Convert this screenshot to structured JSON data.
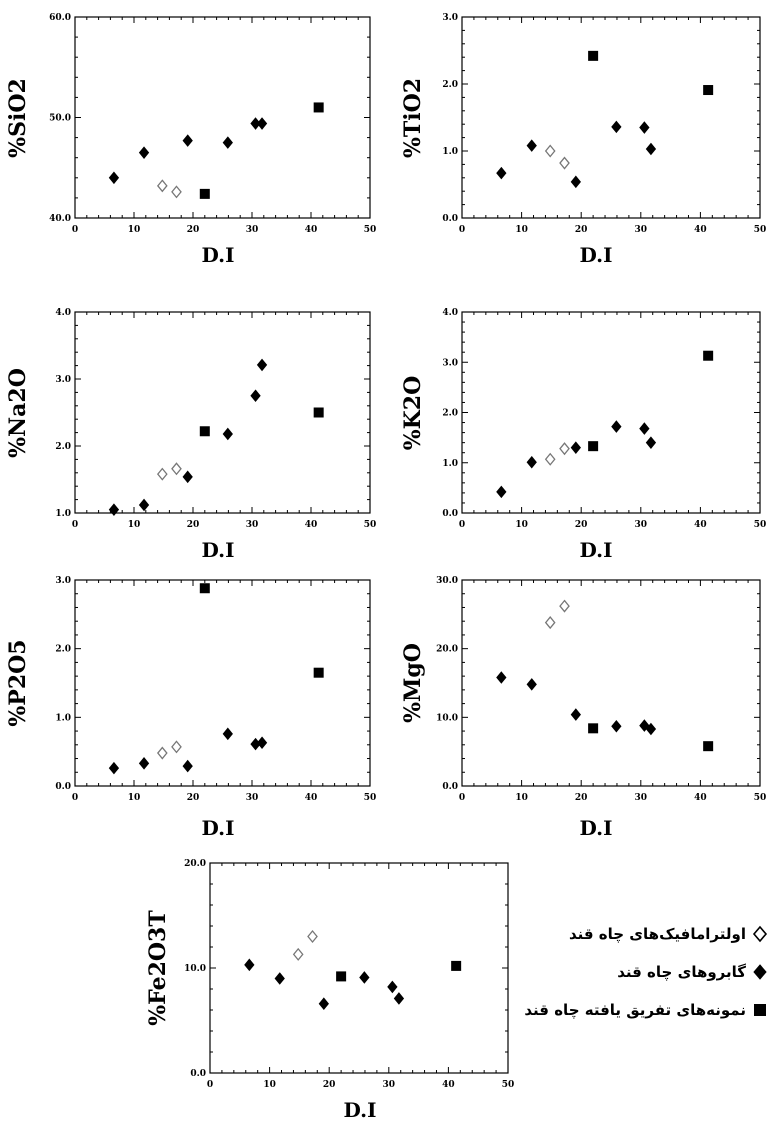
{
  "chart_data": [
    {
      "type": "scatter",
      "id": "sio2",
      "ylabel": "%SiO2",
      "xlabel": "D.I",
      "xlim": [
        0,
        50
      ],
      "ylim": [
        40,
        60
      ],
      "xticks": [
        0,
        10,
        20,
        30,
        40,
        50
      ],
      "xtick_labels": [
        "0",
        "10",
        "20",
        "30",
        "40",
        "50"
      ],
      "yticks": [
        40,
        50,
        60
      ],
      "ytick_labels": [
        "40.0",
        "50.0",
        "60.0"
      ],
      "series": [
        {
          "marker": "open-diamond",
          "x": [
            14.8,
            17.2
          ],
          "y": [
            43.2,
            42.6
          ]
        },
        {
          "marker": "filled-diamond",
          "x": [
            6.6,
            11.7,
            19.1,
            25.9,
            30.6,
            31.7
          ],
          "y": [
            44.0,
            46.5,
            47.7,
            47.5,
            49.4,
            49.4
          ]
        },
        {
          "marker": "filled-square",
          "x": [
            22.0,
            41.3
          ],
          "y": [
            42.4,
            51.0
          ]
        }
      ]
    },
    {
      "type": "scatter",
      "id": "tio2",
      "ylabel": "%TiO2",
      "xlabel": "D.I",
      "xlim": [
        0,
        50
      ],
      "ylim": [
        0,
        3
      ],
      "xticks": [
        0,
        10,
        20,
        30,
        40,
        50
      ],
      "xtick_labels": [
        "0",
        "10",
        "20",
        "30",
        "40",
        "50"
      ],
      "yticks": [
        0,
        1,
        2,
        3
      ],
      "ytick_labels": [
        "0.0",
        "1.0",
        "2.0",
        "3.0"
      ],
      "series": [
        {
          "marker": "open-diamond",
          "x": [
            14.8,
            17.2
          ],
          "y": [
            1.0,
            0.82
          ]
        },
        {
          "marker": "filled-diamond",
          "x": [
            6.6,
            11.7,
            19.1,
            25.9,
            30.6,
            31.7
          ],
          "y": [
            0.67,
            1.08,
            0.54,
            1.36,
            1.35,
            1.03
          ]
        },
        {
          "marker": "filled-square",
          "x": [
            22.0,
            41.3
          ],
          "y": [
            2.42,
            1.91
          ]
        }
      ]
    },
    {
      "type": "scatter",
      "id": "na2o",
      "ylabel": "%Na2O",
      "xlabel": "D.I",
      "xlim": [
        0,
        50
      ],
      "ylim": [
        1,
        4
      ],
      "xticks": [
        0,
        10,
        20,
        30,
        40,
        50
      ],
      "xtick_labels": [
        "0",
        "10",
        "20",
        "30",
        "40",
        "50"
      ],
      "yticks": [
        1,
        2,
        3,
        4
      ],
      "ytick_labels": [
        "1.0",
        "2.0",
        "3.0",
        "4.0"
      ],
      "series": [
        {
          "marker": "open-diamond",
          "x": [
            14.8,
            17.2
          ],
          "y": [
            1.58,
            1.66
          ]
        },
        {
          "marker": "filled-diamond",
          "x": [
            6.6,
            11.7,
            19.1,
            25.9,
            30.6,
            31.7
          ],
          "y": [
            1.05,
            1.12,
            1.54,
            2.18,
            2.75,
            3.21
          ]
        },
        {
          "marker": "filled-square",
          "x": [
            22.0,
            41.3
          ],
          "y": [
            2.22,
            2.5
          ]
        }
      ]
    },
    {
      "type": "scatter",
      "id": "k2o",
      "ylabel": "%K2O",
      "xlabel": "D.I",
      "xlim": [
        0,
        50
      ],
      "ylim": [
        0,
        4
      ],
      "xticks": [
        0,
        10,
        20,
        30,
        40,
        50
      ],
      "xtick_labels": [
        "0",
        "10",
        "20",
        "30",
        "40",
        "50"
      ],
      "yticks": [
        0,
        1,
        2,
        3,
        4
      ],
      "ytick_labels": [
        "0.0",
        "1.0",
        "2.0",
        "3.0",
        "4.0"
      ],
      "series": [
        {
          "marker": "open-diamond",
          "x": [
            14.8,
            17.2
          ],
          "y": [
            1.07,
            1.28
          ]
        },
        {
          "marker": "filled-diamond",
          "x": [
            6.6,
            11.7,
            19.1,
            25.9,
            30.6,
            31.7
          ],
          "y": [
            0.42,
            1.01,
            1.3,
            1.72,
            1.68,
            1.4
          ]
        },
        {
          "marker": "filled-square",
          "x": [
            22.0,
            41.3
          ],
          "y": [
            1.33,
            3.13
          ]
        }
      ]
    },
    {
      "type": "scatter",
      "id": "p2o5",
      "ylabel": "%P2O5",
      "xlabel": "D.I",
      "xlim": [
        0,
        50
      ],
      "ylim": [
        0,
        3
      ],
      "xticks": [
        0,
        10,
        20,
        30,
        40,
        50
      ],
      "xtick_labels": [
        "0",
        "10",
        "20",
        "30",
        "40",
        "50"
      ],
      "yticks": [
        0,
        1,
        2,
        3
      ],
      "ytick_labels": [
        "0.0",
        "1.0",
        "2.0",
        "3.0"
      ],
      "series": [
        {
          "marker": "open-diamond",
          "x": [
            14.8,
            17.2
          ],
          "y": [
            0.48,
            0.57
          ]
        },
        {
          "marker": "filled-diamond",
          "x": [
            6.6,
            11.7,
            19.1,
            25.9,
            30.6,
            31.7
          ],
          "y": [
            0.26,
            0.33,
            0.29,
            0.76,
            0.61,
            0.63
          ]
        },
        {
          "marker": "filled-square",
          "x": [
            22.0,
            41.3
          ],
          "y": [
            2.88,
            1.65
          ]
        }
      ]
    },
    {
      "type": "scatter",
      "id": "mgo",
      "ylabel": "%MgO",
      "xlabel": "D.I",
      "xlim": [
        0,
        50
      ],
      "ylim": [
        0,
        30
      ],
      "xticks": [
        0,
        10,
        20,
        30,
        40,
        50
      ],
      "xtick_labels": [
        "0",
        "10",
        "20",
        "30",
        "40",
        "50"
      ],
      "yticks": [
        0,
        10,
        20,
        30
      ],
      "ytick_labels": [
        "0.0",
        "10.0",
        "20.0",
        "30.0"
      ],
      "series": [
        {
          "marker": "open-diamond",
          "x": [
            14.8,
            17.2
          ],
          "y": [
            23.8,
            26.2
          ]
        },
        {
          "marker": "filled-diamond",
          "x": [
            6.6,
            11.7,
            19.1,
            25.9,
            30.6,
            31.7
          ],
          "y": [
            15.8,
            14.8,
            10.4,
            8.7,
            8.8,
            8.3
          ]
        },
        {
          "marker": "filled-square",
          "x": [
            22.0,
            41.3
          ],
          "y": [
            8.4,
            5.8
          ]
        }
      ]
    },
    {
      "type": "scatter",
      "id": "fe2o3t",
      "ylabel": "%Fe2O3T",
      "xlabel": "D.I",
      "xlim": [
        0,
        50
      ],
      "ylim": [
        0,
        20
      ],
      "xticks": [
        0,
        10,
        20,
        30,
        40,
        50
      ],
      "xtick_labels": [
        "0",
        "10",
        "20",
        "30",
        "40",
        "50"
      ],
      "yticks": [
        0,
        10,
        20
      ],
      "ytick_labels": [
        "0.0",
        "10.0",
        "20.0"
      ],
      "series": [
        {
          "marker": "open-diamond",
          "x": [
            14.8,
            17.2
          ],
          "y": [
            11.3,
            13.0
          ]
        },
        {
          "marker": "filled-diamond",
          "x": [
            6.6,
            11.7,
            19.1,
            25.9,
            30.6,
            31.7
          ],
          "y": [
            10.3,
            9.0,
            6.6,
            9.1,
            8.2,
            7.1
          ]
        },
        {
          "marker": "filled-square",
          "x": [
            22.0,
            41.3
          ],
          "y": [
            9.2,
            10.2
          ]
        }
      ]
    }
  ],
  "legend": {
    "items": [
      {
        "marker": "open-diamond",
        "label": "اولترامافیک‌های چاه قند"
      },
      {
        "marker": "filled-diamond",
        "label": "گابروهای چاه قند"
      },
      {
        "marker": "filled-square",
        "label": "نمونه‌های تفریق یافته چاه قند"
      }
    ]
  },
  "colors": {
    "ink": "#000000",
    "background": "#ffffff"
  }
}
